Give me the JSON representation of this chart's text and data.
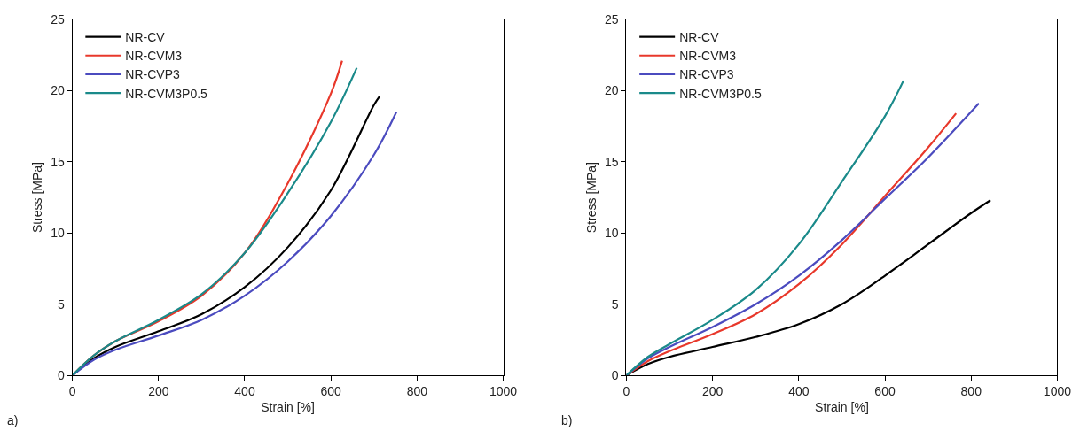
{
  "chart_data": [
    {
      "type": "line",
      "xlabel": "Strain [%]",
      "ylabel": "Stress [MPa]",
      "xlim": [
        0,
        1000
      ],
      "ylim": [
        0,
        25
      ],
      "xticks": [
        0,
        200,
        400,
        600,
        800,
        1000
      ],
      "yticks": [
        0,
        5,
        10,
        15,
        20,
        25
      ],
      "legend": "top left",
      "marker": "none",
      "line_style": "solid",
      "annotations": [
        "a)"
      ],
      "series": [
        {
          "name": "NR-CV",
          "color": "#000000",
          "x": [
            0,
            50,
            100,
            200,
            300,
            400,
            500,
            600,
            700,
            713
          ],
          "values": [
            0,
            1.2,
            2.0,
            3.1,
            4.3,
            6.2,
            9.0,
            13.0,
            19.0,
            19.6
          ]
        },
        {
          "name": "NR-CVM3",
          "color": "#e8382b",
          "x": [
            0,
            50,
            100,
            200,
            300,
            400,
            500,
            600,
            626
          ],
          "values": [
            0,
            1.4,
            2.4,
            3.8,
            5.6,
            8.6,
            13.5,
            19.8,
            22.1
          ]
        },
        {
          "name": "NR-CVP3",
          "color": "#4b4bbf",
          "x": [
            0,
            50,
            100,
            200,
            300,
            400,
            500,
            600,
            700,
            752
          ],
          "values": [
            0,
            1.1,
            1.8,
            2.8,
            3.9,
            5.6,
            8.0,
            11.2,
            15.5,
            18.5
          ]
        },
        {
          "name": "NR-CVM3P0.5",
          "color": "#1a8a8a",
          "x": [
            0,
            50,
            100,
            200,
            300,
            400,
            500,
            600,
            660
          ],
          "values": [
            0,
            1.4,
            2.4,
            3.9,
            5.7,
            8.6,
            12.8,
            17.8,
            21.6
          ]
        }
      ]
    },
    {
      "type": "line",
      "xlabel": "Strain [%]",
      "ylabel": "Stress [MPa]",
      "xlim": [
        0,
        1000
      ],
      "ylim": [
        0,
        25
      ],
      "xticks": [
        0,
        200,
        400,
        600,
        800,
        1000
      ],
      "yticks": [
        0,
        5,
        10,
        15,
        20,
        25
      ],
      "legend": "top left",
      "marker": "none",
      "line_style": "solid",
      "annotations": [
        "b)"
      ],
      "series": [
        {
          "name": "NR-CV",
          "color": "#000000",
          "x": [
            0,
            50,
            100,
            200,
            300,
            400,
            500,
            600,
            700,
            800,
            845
          ],
          "values": [
            0,
            0.8,
            1.3,
            2.0,
            2.7,
            3.6,
            5.0,
            7.0,
            9.2,
            11.4,
            12.3
          ]
        },
        {
          "name": "NR-CVM3",
          "color": "#e8382b",
          "x": [
            0,
            50,
            100,
            200,
            300,
            400,
            500,
            600,
            700,
            765
          ],
          "values": [
            0,
            1.0,
            1.7,
            2.9,
            4.3,
            6.4,
            9.2,
            12.6,
            16.0,
            18.4
          ]
        },
        {
          "name": "NR-CVP3",
          "color": "#4b4bbf",
          "x": [
            0,
            50,
            100,
            200,
            300,
            400,
            500,
            600,
            700,
            818
          ],
          "values": [
            0,
            1.2,
            2.0,
            3.4,
            5.0,
            7.0,
            9.5,
            12.4,
            15.3,
            19.1
          ]
        },
        {
          "name": "NR-CVM3P0.5",
          "color": "#1a8a8a",
          "x": [
            0,
            50,
            100,
            200,
            300,
            400,
            500,
            600,
            643
          ],
          "values": [
            0,
            1.3,
            2.2,
            3.9,
            6.0,
            9.2,
            13.6,
            18.2,
            20.7
          ]
        }
      ]
    }
  ]
}
